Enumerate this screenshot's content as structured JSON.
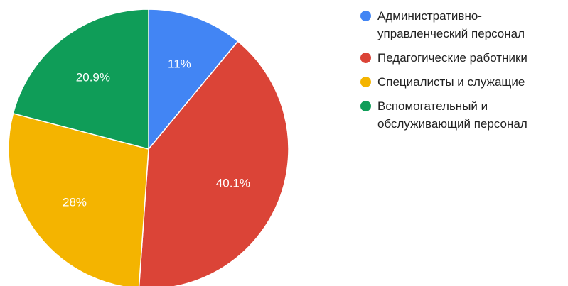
{
  "chart_data": {
    "type": "pie",
    "title": "",
    "legend_position": "right",
    "slices": [
      {
        "label": "Административно-управленческий персонал",
        "value": 11,
        "display": "11%",
        "color": "#4285F4"
      },
      {
        "label": "Педагогические работники",
        "value": 40.1,
        "display": "40.1%",
        "color": "#DB4437"
      },
      {
        "label": "Специалисты и служащие",
        "value": 28,
        "display": "28%",
        "color": "#F4B400"
      },
      {
        "label": "Вспомогательный и обслуживающий персонал",
        "value": 20.9,
        "display": "20.9%",
        "color": "#0F9D58"
      }
    ]
  }
}
